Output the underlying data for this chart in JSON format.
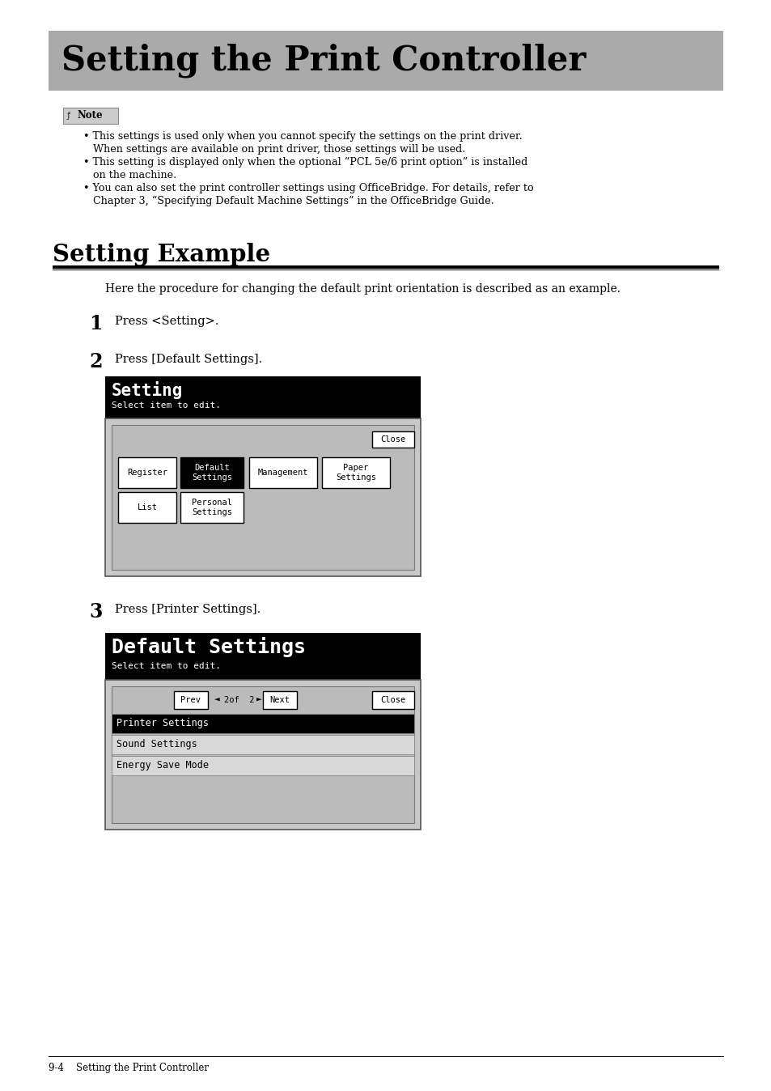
{
  "title": "Setting the Print Controller",
  "title_bg_color": "#aaaaaa",
  "section_title": "Setting Example",
  "section_intro": "Here the procedure for changing the default print orientation is described as an example.",
  "step1_num": "1",
  "step1_text": "Press <Setting>.",
  "step2_num": "2",
  "step2_text": "Press [Default Settings].",
  "step3_num": "3",
  "step3_text": "Press [Printer Settings].",
  "screen1_title": "Setting",
  "screen1_subtitle": "Select item to edit.",
  "screen1_buttons_row1": [
    "Register",
    "Default\nSettings",
    "Management",
    "Paper\nSettings"
  ],
  "screen1_buttons_row2": [
    "List",
    "Personal\nSettings"
  ],
  "screen1_selected_btn": "Default\nSettings",
  "screen2_title": "Default Settings",
  "screen2_subtitle": "Select item to edit.",
  "screen2_items": [
    "Printer Settings",
    "Sound Settings",
    "Energy Save Mode"
  ],
  "screen2_selected_item": "Printer Settings",
  "footer_text": "9-4    Setting the Print Controller",
  "bg_color": "#ffffff",
  "note_box_color": "#cccccc",
  "note_icon": "ƒ",
  "note_label": "Note",
  "note_lines": [
    "• This settings is used only when you cannot specify the settings on the print driver.",
    "   When settings are available on print driver, those settings will be used.",
    "• This setting is displayed only when the optional “PCL 5e/6 print option” is installed",
    "   on the machine.",
    "• You can also set the print controller settings using OfficeBridge. For details, refer to",
    "   Chapter 3, “Specifying Default Machine Settings” in the OfficeBridge Guide."
  ]
}
